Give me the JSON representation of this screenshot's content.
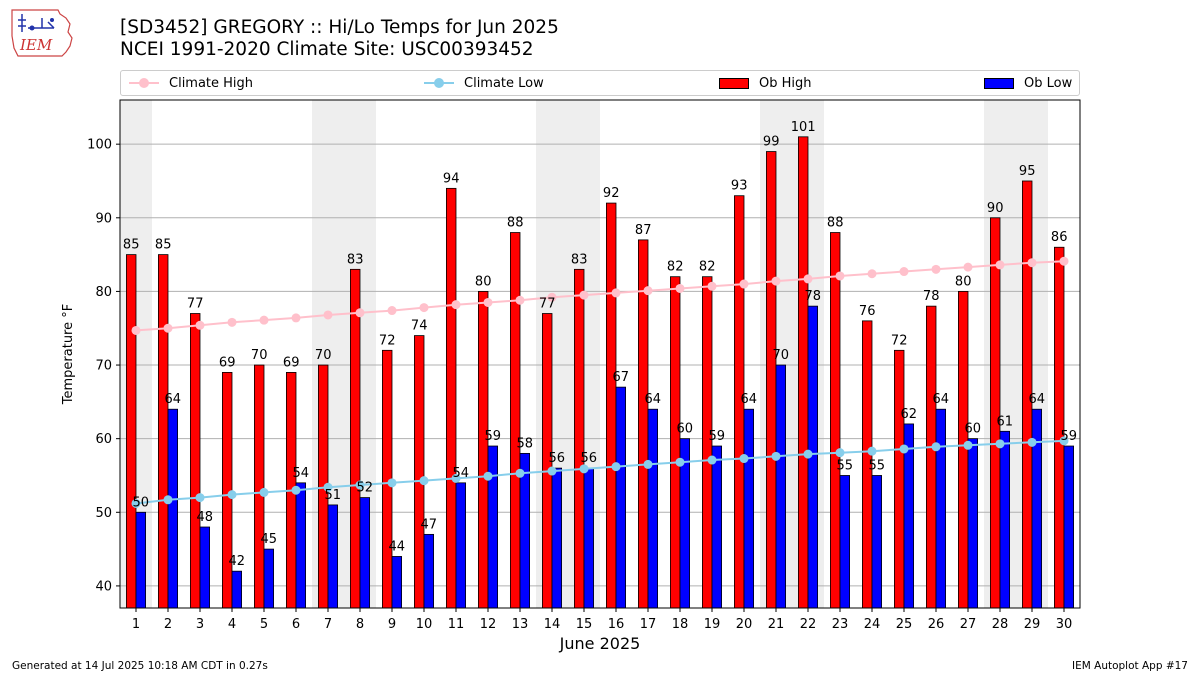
{
  "header": {
    "logo_text": "IEM",
    "title_line1": "[SD3452] GREGORY :: Hi/Lo Temps for Jun 2025",
    "title_line2": "NCEI 1991-2020 Climate Site: USC00393452"
  },
  "legend": {
    "climate_high": "Climate High",
    "climate_low": "Climate Low",
    "ob_high": "Ob High",
    "ob_low": "Ob Low"
  },
  "colors": {
    "ob_high": "#ff0000",
    "ob_low": "#0000ff",
    "climate_high": "#ffc0cb",
    "climate_low": "#87ceeb",
    "weekend_shade": "#eeeeee",
    "grid": "#b0b0b0"
  },
  "chart_data": {
    "type": "bar",
    "xlabel": "June 2025",
    "ylabel": "Temperature °F",
    "ylim": [
      37,
      106
    ],
    "yticks": [
      40,
      50,
      60,
      70,
      80,
      90,
      100
    ],
    "grid": "horizontal",
    "legend_position": "top",
    "categories": [
      1,
      2,
      3,
      4,
      5,
      6,
      7,
      8,
      9,
      10,
      11,
      12,
      13,
      14,
      15,
      16,
      17,
      18,
      19,
      20,
      21,
      22,
      23,
      24,
      25,
      26,
      27,
      28,
      29,
      30
    ],
    "weekend_days": [
      1,
      7,
      8,
      14,
      15,
      21,
      22,
      28,
      29
    ],
    "series": [
      {
        "name": "Ob High",
        "kind": "bar",
        "values": [
          85,
          85,
          77,
          69,
          70,
          69,
          70,
          83,
          72,
          74,
          94,
          80,
          88,
          77,
          83,
          92,
          87,
          82,
          82,
          93,
          99,
          101,
          88,
          76,
          72,
          78,
          80,
          90,
          95,
          86
        ]
      },
      {
        "name": "Ob Low",
        "kind": "bar",
        "values": [
          50,
          64,
          48,
          42,
          45,
          54,
          51,
          52,
          44,
          47,
          54,
          59,
          58,
          56,
          56,
          67,
          64,
          60,
          59,
          64,
          70,
          78,
          55,
          55,
          62,
          64,
          60,
          61,
          64,
          59
        ]
      },
      {
        "name": "Climate High",
        "kind": "line",
        "values": [
          74.7,
          75.0,
          75.4,
          75.8,
          76.1,
          76.4,
          76.8,
          77.1,
          77.4,
          77.8,
          78.2,
          78.5,
          78.8,
          79.2,
          79.5,
          79.8,
          80.1,
          80.4,
          80.7,
          81.0,
          81.4,
          81.7,
          82.1,
          82.4,
          82.7,
          83.0,
          83.3,
          83.6,
          83.9,
          84.1
        ]
      },
      {
        "name": "Climate Low",
        "kind": "line",
        "values": [
          51.2,
          51.7,
          52.0,
          52.4,
          52.7,
          53.0,
          53.4,
          53.7,
          54.0,
          54.3,
          54.6,
          54.9,
          55.3,
          55.6,
          55.9,
          56.2,
          56.5,
          56.8,
          57.1,
          57.3,
          57.6,
          57.9,
          58.1,
          58.3,
          58.6,
          58.9,
          59.1,
          59.3,
          59.5,
          59.7
        ]
      }
    ]
  },
  "footer": {
    "generated": "Generated at 14 Jul 2025 10:18 AM CDT in 0.27s",
    "app": "IEM Autoplot App #17"
  }
}
